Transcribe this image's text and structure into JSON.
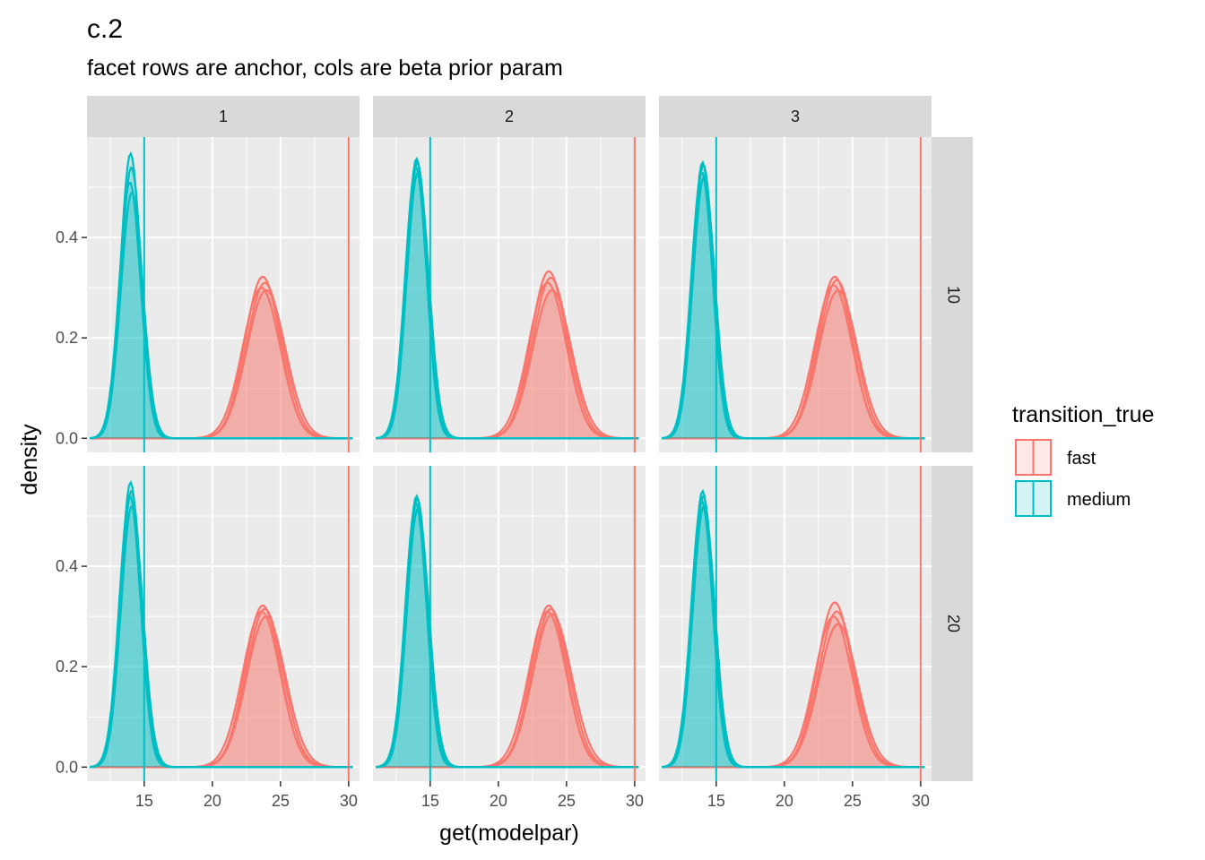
{
  "title": "c.2",
  "subtitle": "facet rows are anchor, cols are beta prior param",
  "chart_data": {
    "type": "area",
    "description_type": "faceted density plot",
    "xlabel": "get(modelpar)",
    "ylabel": "density",
    "xlim": [
      10.8,
      30.8
    ],
    "ylim": [
      -0.028,
      0.6
    ],
    "x_ticks": [
      15,
      20,
      25,
      30
    ],
    "x_tick_labels": [
      "15",
      "20",
      "25",
      "30"
    ],
    "y_ticks": [
      0.0,
      0.2,
      0.4
    ],
    "y_tick_labels": [
      "0.0",
      "0.2",
      "0.4"
    ],
    "grid": true,
    "facet_cols": [
      "1",
      "2",
      "3"
    ],
    "facet_rows": [
      "10",
      "20"
    ],
    "legend": {
      "title": "transition_true",
      "position": "right",
      "entries": [
        {
          "label": "fast",
          "color": "#F8766D"
        },
        {
          "label": "medium",
          "color": "#00BFC4"
        }
      ]
    },
    "vlines": [
      {
        "x": 15,
        "color": "#00BFC4"
      },
      {
        "x": 30,
        "color": "#F8766D"
      }
    ],
    "series_shape": [
      {
        "name": "fast",
        "color": "#F8766D",
        "distribution": "normal",
        "mean": 23.7,
        "sd": 1.3,
        "curves_per_panel": 4
      },
      {
        "name": "medium",
        "color": "#00BFC4",
        "distribution": "normal",
        "mean": 14.0,
        "sd": 0.74,
        "curves_per_panel": 4
      }
    ],
    "panels": [
      {
        "row": "10",
        "col": "1",
        "fast_peaks": [
          0.322,
          0.31,
          0.3,
          0.295
        ],
        "medium_peaks": [
          0.567,
          0.54,
          0.51,
          0.49
        ]
      },
      {
        "row": "10",
        "col": "2",
        "fast_peaks": [
          0.333,
          0.32,
          0.31,
          0.295
        ],
        "medium_peaks": [
          0.557,
          0.55,
          0.54,
          0.53
        ]
      },
      {
        "row": "10",
        "col": "3",
        "fast_peaks": [
          0.322,
          0.315,
          0.305,
          0.295
        ],
        "medium_peaks": [
          0.55,
          0.545,
          0.53,
          0.52
        ]
      },
      {
        "row": "20",
        "col": "1",
        "fast_peaks": [
          0.322,
          0.315,
          0.31,
          0.3
        ],
        "medium_peaks": [
          0.567,
          0.55,
          0.54,
          0.52
        ]
      },
      {
        "row": "20",
        "col": "2",
        "fast_peaks": [
          0.322,
          0.315,
          0.31,
          0.305
        ],
        "medium_peaks": [
          0.54,
          0.535,
          0.525,
          0.515
        ]
      },
      {
        "row": "20",
        "col": "3",
        "fast_peaks": [
          0.328,
          0.31,
          0.3,
          0.285
        ],
        "medium_peaks": [
          0.55,
          0.54,
          0.53,
          0.52
        ]
      }
    ]
  }
}
